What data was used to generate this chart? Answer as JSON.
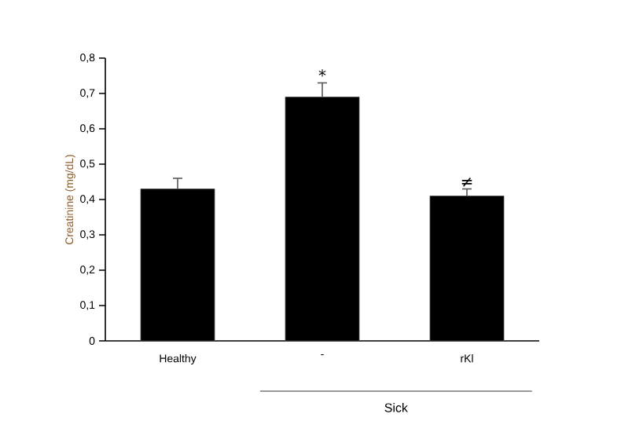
{
  "chart_data": {
    "type": "bar",
    "ylabel": "Creatinine  (mg/dL)",
    "categories": [
      "Healthy",
      "-",
      "rKl"
    ],
    "values": [
      0.43,
      0.69,
      0.41
    ],
    "errors": [
      0.03,
      0.04,
      0.02
    ],
    "color": "#000000",
    "ylim": [
      0,
      0.8
    ],
    "yticks": [
      {
        "value": 0,
        "label": "0"
      },
      {
        "value": 0.1,
        "label": "0,1"
      },
      {
        "value": 0.2,
        "label": "0,2"
      },
      {
        "value": 0.3,
        "label": "0,3"
      },
      {
        "value": 0.4,
        "label": "0,4"
      },
      {
        "value": 0.5,
        "label": "0,5"
      },
      {
        "value": 0.6,
        "label": "0,6"
      },
      {
        "value": 0.7,
        "label": "0,7"
      },
      {
        "value": 0.8,
        "label": "0,8"
      }
    ],
    "grid": false,
    "annotations": [
      {
        "text": "*",
        "x": "-",
        "y": 0.73
      },
      {
        "text": "≠",
        "x": "rKl",
        "y": 0.43
      },
      "Sick"
    ]
  }
}
